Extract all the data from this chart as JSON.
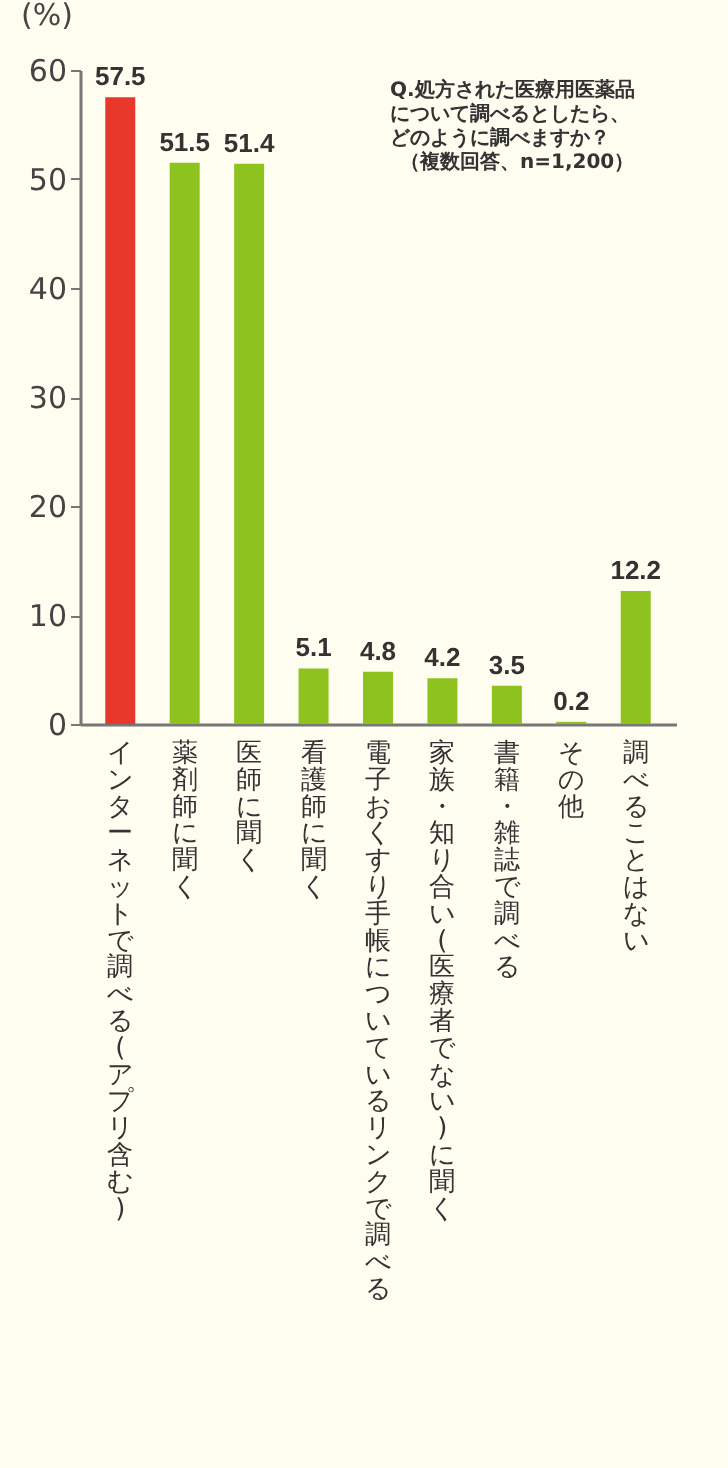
{
  "chart_data": {
    "type": "bar",
    "ylabel": "(%)",
    "annotations": [
      "Q.処方された医療用医薬品",
      "について調べるとしたら、",
      "どのように調べますか？",
      "（複数回答、n=1,200）"
    ],
    "categories": [
      "インターネットで調べる(アプリ含む)",
      "薬剤師に聞く",
      "医師に聞く",
      "看護師に聞く",
      "電子おくすり手帳についているリンクで調べる",
      "家族・知り合い(医療者でない)に聞く",
      "書籍・雑誌で調べる",
      "その他",
      "調べることはない"
    ],
    "values": [
      57.5,
      51.5,
      51.4,
      5.1,
      4.8,
      4.2,
      3.5,
      0.2,
      12.2
    ],
    "colors": [
      "#e8382b",
      "#8dc21f",
      "#8dc21f",
      "#8dc21f",
      "#8dc21f",
      "#8dc21f",
      "#8dc21f",
      "#8dc21f",
      "#8dc21f"
    ],
    "ylim": [
      0,
      60
    ],
    "yticks": [
      0,
      10,
      20,
      30,
      40,
      50,
      60
    ],
    "data_labels": true,
    "grid": false
  }
}
